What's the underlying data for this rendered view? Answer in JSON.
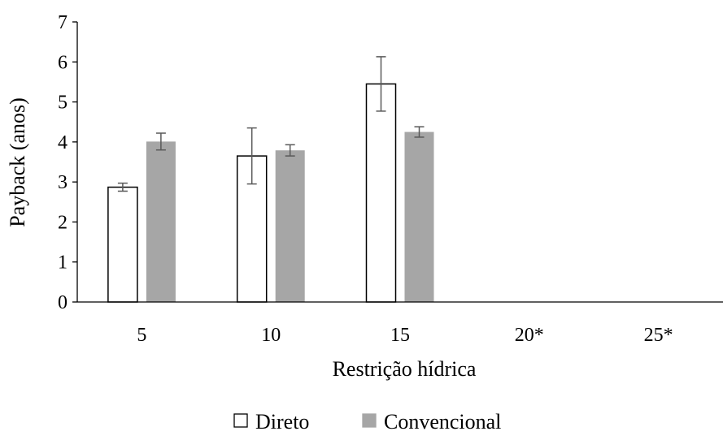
{
  "chart_data": {
    "type": "bar",
    "title": "",
    "xlabel": "Restrição hídrica",
    "ylabel": "Payback (anos)",
    "categories": [
      "5",
      "10",
      "15",
      "20*",
      "25*"
    ],
    "ylim": [
      0,
      7
    ],
    "yticks": [
      0,
      1,
      2,
      3,
      4,
      5,
      6,
      7
    ],
    "grid": false,
    "legend_position": "bottom",
    "series": [
      {
        "name": "Direto",
        "fill": "#ffffff",
        "stroke": "#000000",
        "values": [
          2.87,
          3.65,
          5.45,
          null,
          null
        ],
        "error": [
          0.1,
          0.7,
          0.68,
          null,
          null
        ]
      },
      {
        "name": "Convencional",
        "fill": "#a6a6a6",
        "stroke": "#a6a6a6",
        "values": [
          4.01,
          3.79,
          4.25,
          null,
          null
        ],
        "error": [
          0.21,
          0.14,
          0.13,
          null,
          null
        ]
      }
    ]
  }
}
